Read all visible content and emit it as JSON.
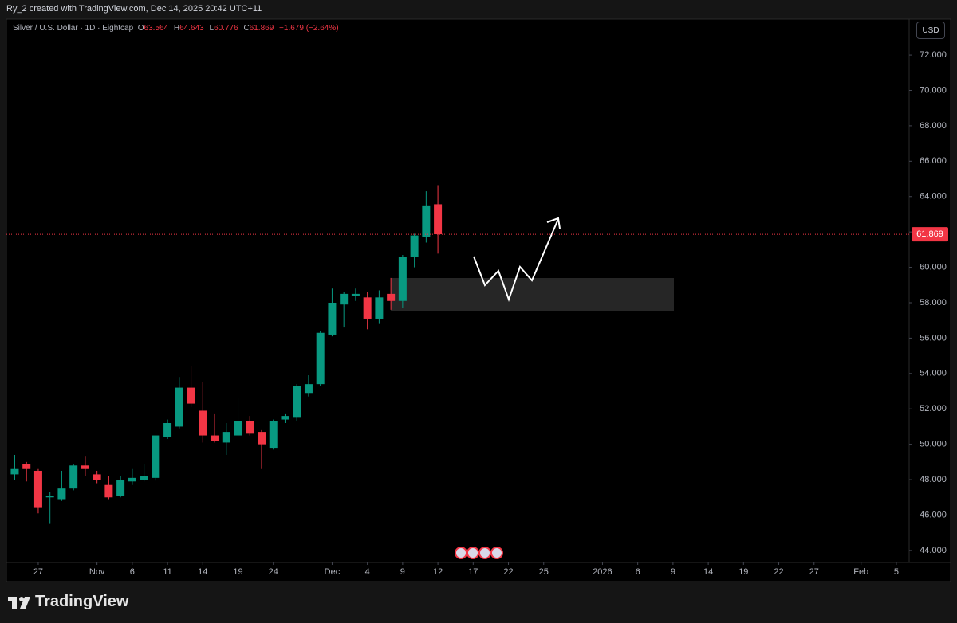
{
  "caption": "Ry_2 created with TradingView.com, Dec 14, 2025 20:42 UTC+11",
  "brand": "TradingView",
  "chart_data": {
    "type": "candlestick",
    "title": "Silver / U.S. Dollar · 1D · Eightcap",
    "ohlc_keys": [
      "O",
      "H",
      "L",
      "C"
    ],
    "change": "−1.679 (−2.64%)",
    "currency": "USD",
    "up_color": "#089981",
    "down_color": "#f23645",
    "grid": false,
    "x": [
      0,
      1,
      2,
      3,
      4,
      5,
      6,
      7,
      8,
      9,
      10,
      11,
      12,
      13,
      14,
      15,
      16,
      17,
      18,
      19,
      20,
      21,
      22,
      23,
      24,
      25,
      26,
      27,
      28,
      29,
      30,
      31,
      32,
      33,
      34,
      35,
      36
    ],
    "open": [
      48.3,
      48.9,
      48.5,
      47.0,
      46.9,
      47.5,
      48.8,
      48.3,
      47.7,
      47.1,
      47.9,
      48.0,
      48.1,
      50.4,
      51.0,
      53.2,
      51.9,
      50.5,
      50.1,
      50.5,
      51.3,
      50.7,
      49.8,
      51.4,
      51.5,
      52.9,
      53.4,
      56.2,
      57.9,
      58.4,
      58.3,
      57.1,
      58.5,
      58.1,
      60.6,
      61.7,
      63.564
    ],
    "high": [
      49.4,
      49.0,
      48.6,
      47.3,
      48.5,
      48.9,
      49.3,
      48.5,
      48.2,
      48.2,
      48.6,
      48.9,
      50.5,
      51.4,
      53.8,
      54.4,
      53.5,
      51.7,
      51.2,
      52.6,
      51.6,
      50.8,
      51.4,
      51.7,
      53.4,
      53.9,
      56.4,
      58.8,
      58.6,
      58.8,
      58.6,
      58.7,
      59.4,
      60.7,
      61.9,
      64.3,
      64.643
    ],
    "low": [
      48.0,
      47.9,
      46.1,
      45.5,
      46.8,
      47.4,
      48.2,
      47.8,
      46.9,
      47.0,
      47.7,
      47.9,
      47.95,
      50.3,
      50.9,
      52.1,
      50.1,
      50.1,
      49.4,
      50.4,
      50.5,
      48.6,
      49.7,
      51.2,
      51.3,
      52.7,
      53.3,
      56.1,
      56.6,
      58.1,
      56.5,
      56.8,
      57.6,
      57.7,
      60.0,
      61.4,
      60.776
    ],
    "close": [
      48.6,
      48.6,
      46.4,
      47.1,
      47.5,
      48.8,
      48.6,
      48.0,
      47.0,
      48.0,
      48.1,
      48.2,
      50.5,
      51.2,
      53.2,
      52.3,
      50.5,
      50.2,
      50.7,
      51.3,
      50.6,
      50.0,
      51.3,
      51.6,
      53.3,
      53.4,
      56.3,
      58.0,
      58.5,
      58.5,
      57.1,
      58.3,
      58.1,
      60.6,
      61.8,
      63.5,
      61.869
    ],
    "xlim": [
      -0.71,
      76.09
    ],
    "ylim": [
      43.32,
      74.03
    ],
    "yticks": [
      {
        "value": 44,
        "label": "44.000"
      },
      {
        "value": 46,
        "label": "46.000"
      },
      {
        "value": 48,
        "label": "48.000"
      },
      {
        "value": 50,
        "label": "50.000"
      },
      {
        "value": 52,
        "label": "52.000"
      },
      {
        "value": 54,
        "label": "54.000"
      },
      {
        "value": 56,
        "label": "56.000"
      },
      {
        "value": 58,
        "label": "58.000"
      },
      {
        "value": 60,
        "label": "60.000"
      },
      {
        "value": 62,
        "label": "62.000"
      },
      {
        "value": 64,
        "label": "64.000"
      },
      {
        "value": 66,
        "label": "66.000"
      },
      {
        "value": 68,
        "label": "68.000"
      },
      {
        "value": 70,
        "label": "70.000"
      },
      {
        "value": 72,
        "label": "72.000"
      }
    ],
    "xticks": [
      {
        "value": 2,
        "label": "27"
      },
      {
        "value": 7,
        "label": "Nov"
      },
      {
        "value": 10,
        "label": "6"
      },
      {
        "value": 13,
        "label": "11"
      },
      {
        "value": 16,
        "label": "14"
      },
      {
        "value": 19,
        "label": "19"
      },
      {
        "value": 22,
        "label": "24"
      },
      {
        "value": 27,
        "label": "Dec"
      },
      {
        "value": 30,
        "label": "4"
      },
      {
        "value": 33,
        "label": "9"
      },
      {
        "value": 36,
        "label": "12"
      },
      {
        "value": 39,
        "label": "17"
      },
      {
        "value": 42,
        "label": "22"
      },
      {
        "value": 45,
        "label": "25"
      },
      {
        "value": 50,
        "label": "2026"
      },
      {
        "value": 53,
        "label": "6"
      },
      {
        "value": 56,
        "label": "9"
      },
      {
        "value": 59,
        "label": "14"
      },
      {
        "value": 62,
        "label": "19"
      },
      {
        "value": 65,
        "label": "22"
      },
      {
        "value": 68,
        "label": "27"
      },
      {
        "value": 72,
        "label": "Feb"
      },
      {
        "value": 75,
        "label": "5"
      }
    ]
  }
}
